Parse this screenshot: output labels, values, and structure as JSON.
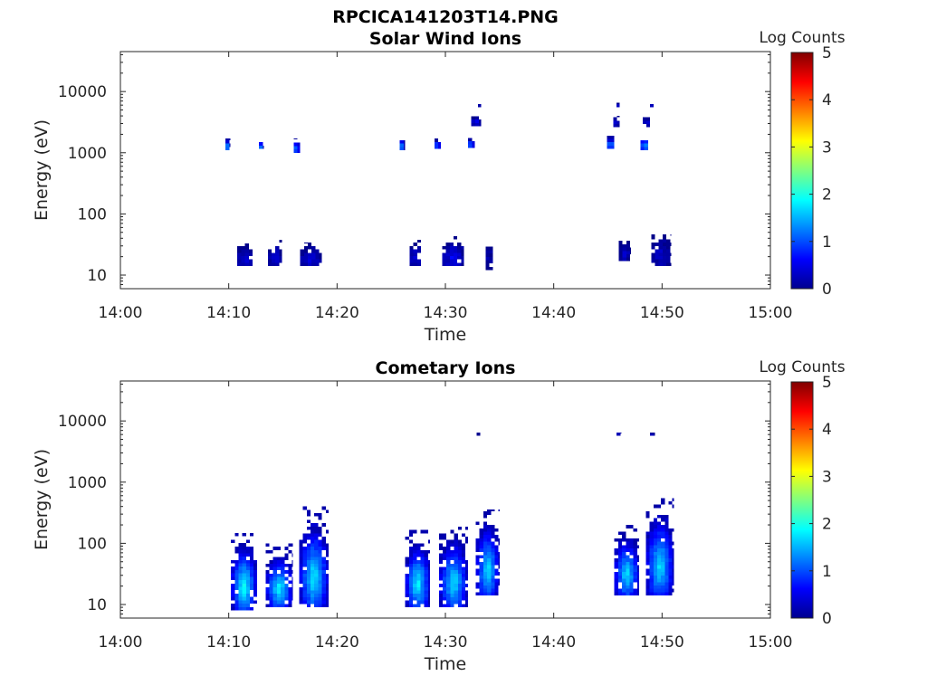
{
  "figure": {
    "title": "RPCICA141203T14.PNG",
    "colormap": "jet",
    "background": "#ffffff"
  },
  "chart_data": [
    {
      "type": "heatmap",
      "title": "Solar Wind Ions",
      "xlabel": "Time",
      "ylabel": "Energy (eV)",
      "x_ticks": [
        "14:00",
        "14:10",
        "14:20",
        "14:30",
        "14:40",
        "14:50",
        "15:00"
      ],
      "x_range_minutes": [
        0,
        60
      ],
      "y_scale": "log",
      "y_ticks": [
        "10",
        "100",
        "1000",
        "10000"
      ],
      "y_range_eV": [
        6,
        45000
      ],
      "colorbar": {
        "label": "Log Counts",
        "range": [
          0,
          5
        ],
        "ticks": [
          "0",
          "1",
          "2",
          "3",
          "4",
          "5"
        ]
      },
      "bursts": [
        {
          "t0": 10.8,
          "t1": 12.2,
          "e_lo": 14,
          "e_hi": 33,
          "peak": 0.5
        },
        {
          "t0": 13.6,
          "t1": 14.9,
          "e_lo": 14,
          "e_hi": 38,
          "peak": 0.4
        },
        {
          "t0": 16.6,
          "t1": 18.6,
          "e_lo": 14,
          "e_hi": 34,
          "peak": 0.45
        },
        {
          "t0": 26.7,
          "t1": 27.8,
          "e_lo": 14,
          "e_hi": 38,
          "peak": 0.45
        },
        {
          "t0": 29.7,
          "t1": 31.7,
          "e_lo": 14,
          "e_hi": 43,
          "peak": 0.6
        },
        {
          "t0": 33.7,
          "t1": 34.4,
          "e_lo": 12,
          "e_hi": 36,
          "peak": 0.3
        },
        {
          "t0": 46.0,
          "t1": 47.1,
          "e_lo": 17,
          "e_hi": 38,
          "peak": 0.35
        },
        {
          "t0": 49.0,
          "t1": 50.8,
          "e_lo": 14,
          "e_hi": 46,
          "peak": 0.4
        },
        {
          "t0": 9.7,
          "t1": 10.1,
          "e_lo": 1100,
          "e_hi": 1700,
          "peak": 1.6
        },
        {
          "t0": 12.8,
          "t1": 13.2,
          "e_lo": 1150,
          "e_hi": 1600,
          "peak": 1.4
        },
        {
          "t0": 16.0,
          "t1": 16.6,
          "e_lo": 1000,
          "e_hi": 1700,
          "peak": 1.5
        },
        {
          "t0": 25.8,
          "t1": 26.3,
          "e_lo": 1100,
          "e_hi": 1800,
          "peak": 1.5
        },
        {
          "t0": 29.0,
          "t1": 29.6,
          "e_lo": 1150,
          "e_hi": 1700,
          "peak": 1.5
        },
        {
          "t0": 32.1,
          "t1": 32.7,
          "e_lo": 1200,
          "e_hi": 1800,
          "peak": 1.5
        },
        {
          "t0": 44.9,
          "t1": 45.6,
          "e_lo": 1150,
          "e_hi": 1900,
          "peak": 1.7
        },
        {
          "t0": 48.0,
          "t1": 48.8,
          "e_lo": 1100,
          "e_hi": 1900,
          "peak": 1.7
        },
        {
          "t0": 32.4,
          "t1": 33.3,
          "e_lo": 2700,
          "e_hi": 4300,
          "peak": 0.6
        },
        {
          "t0": 45.5,
          "t1": 46.1,
          "e_lo": 2600,
          "e_hi": 4000,
          "peak": 0.6
        },
        {
          "t0": 48.2,
          "t1": 48.9,
          "e_lo": 2600,
          "e_hi": 4000,
          "peak": 0.6
        },
        {
          "t0": 33.0,
          "t1": 33.3,
          "e_lo": 5500,
          "e_hi": 6600,
          "peak": 0.3
        },
        {
          "t0": 45.8,
          "t1": 46.1,
          "e_lo": 5500,
          "e_hi": 6600,
          "peak": 0.3
        },
        {
          "t0": 48.9,
          "t1": 49.2,
          "e_lo": 5500,
          "e_hi": 6600,
          "peak": 0.3
        }
      ]
    },
    {
      "type": "heatmap",
      "title": "Cometary Ions",
      "xlabel": "Time",
      "ylabel": "Energy (eV)",
      "x_ticks": [
        "14:00",
        "14:10",
        "14:20",
        "14:30",
        "14:40",
        "14:50",
        "15:00"
      ],
      "x_range_minutes": [
        0,
        60
      ],
      "y_scale": "log",
      "y_ticks": [
        "10",
        "100",
        "1000",
        "10000"
      ],
      "y_range_eV": [
        6,
        45000
      ],
      "colorbar": {
        "label": "Log Counts",
        "range": [
          0,
          5
        ],
        "ticks": [
          "0",
          "1",
          "2",
          "3",
          "4",
          "5"
        ]
      },
      "bursts": [
        {
          "t0": 10.2,
          "t1": 12.6,
          "e_lo": 8,
          "e_hi": 160,
          "peak": 2.0
        },
        {
          "t0": 13.4,
          "t1": 15.9,
          "e_lo": 9,
          "e_hi": 100,
          "peak": 1.9
        },
        {
          "t0": 16.5,
          "t1": 19.2,
          "e_lo": 9,
          "e_hi": 400,
          "peak": 1.9
        },
        {
          "t0": 26.3,
          "t1": 28.6,
          "e_lo": 9,
          "e_hi": 170,
          "peak": 1.9
        },
        {
          "t0": 29.4,
          "t1": 32.1,
          "e_lo": 9,
          "e_hi": 200,
          "peak": 1.8
        },
        {
          "t0": 32.8,
          "t1": 35.0,
          "e_lo": 14,
          "e_hi": 360,
          "peak": 1.8
        },
        {
          "t0": 45.6,
          "t1": 47.9,
          "e_lo": 14,
          "e_hi": 200,
          "peak": 1.8
        },
        {
          "t0": 48.5,
          "t1": 51.1,
          "e_lo": 14,
          "e_hi": 550,
          "peak": 1.8
        },
        {
          "t0": 32.9,
          "t1": 33.2,
          "e_lo": 5700,
          "e_hi": 6500,
          "peak": 0.3
        },
        {
          "t0": 45.8,
          "t1": 46.2,
          "e_lo": 5700,
          "e_hi": 6500,
          "peak": 0.3
        },
        {
          "t0": 48.9,
          "t1": 49.3,
          "e_lo": 5700,
          "e_hi": 6500,
          "peak": 0.3
        }
      ]
    }
  ]
}
